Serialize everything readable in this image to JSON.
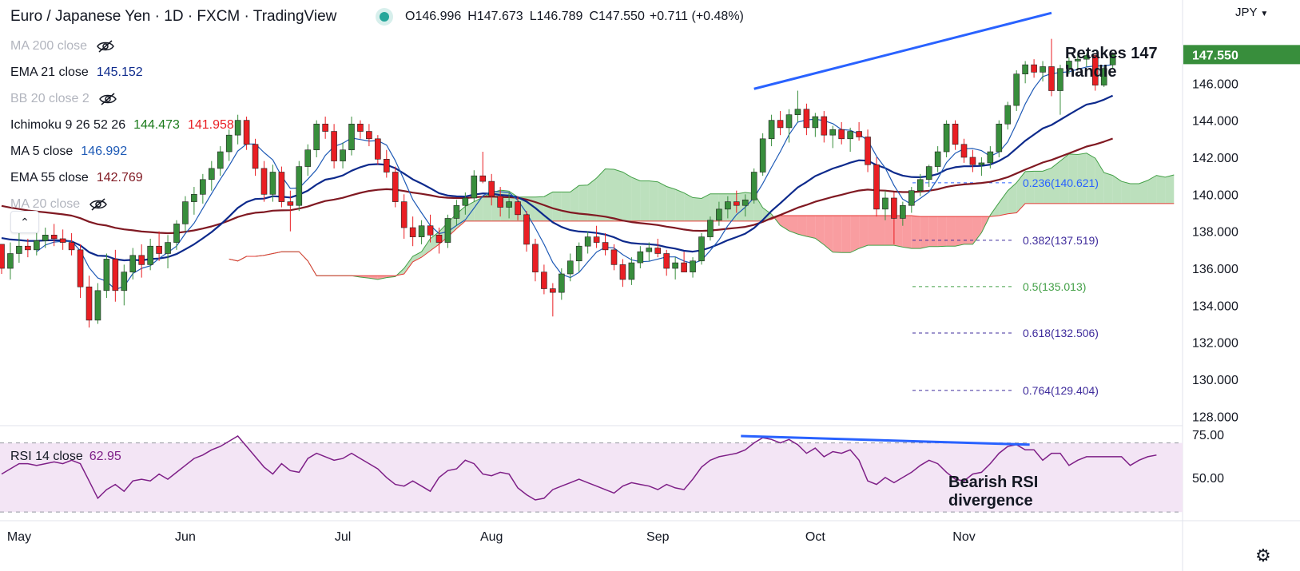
{
  "header": {
    "title": "Euro / Japanese Yen · 1D · FXCM · TradingView",
    "open_label": "O",
    "open": "146.996",
    "high_label": "H",
    "high": "147.673",
    "low_label": "L",
    "low": "146.789",
    "close_label": "C",
    "close": "147.550",
    "change": "+0.711 (+0.48%)",
    "currency": "JPY"
  },
  "legend": {
    "ma200": "MA 200 close",
    "ema21": "EMA 21 close",
    "ema21_val": "145.152",
    "bb20": "BB 20 close 2",
    "ichimoku": "Ichimoku 9 26 52 26",
    "ichimoku_val1": "144.473",
    "ichimoku_val2": "141.958",
    "ma5": "MA 5 close",
    "ma5_val": "146.992",
    "ema55": "EMA 55 close",
    "ema55_val": "142.769",
    "ma20": "MA 20 close"
  },
  "rsi": {
    "label": "RSI 14 close",
    "value": "62.95"
  },
  "colors": {
    "up": "#388e3c",
    "down": "#e91e23",
    "ma5": "#1e5ab6",
    "ema21": "#0d2a8c",
    "ema55": "#801922",
    "cloud_bull": "#a5d6a7",
    "cloud_bear": "#f77c80",
    "trendline": "#2962ff",
    "rsi": "#7e1f87",
    "rsi_band": "#f3e5f5",
    "price_badge": "#388e3c"
  },
  "chart_data": {
    "type": "candlestick",
    "ylim": [
      127.5,
      150.5
    ],
    "y_ticks": [
      "128.000",
      "130.000",
      "132.000",
      "134.000",
      "136.000",
      "138.000",
      "140.000",
      "142.000",
      "144.000",
      "146.000"
    ],
    "last_price": "147.550",
    "x_labels": [
      {
        "label": "May",
        "i": 0
      },
      {
        "label": "Jun",
        "i": 21
      },
      {
        "label": "Jul",
        "i": 39
      },
      {
        "label": "Aug",
        "i": 56
      },
      {
        "label": "Sep",
        "i": 75
      },
      {
        "label": "Oct",
        "i": 93
      },
      {
        "label": "Nov",
        "i": 110
      }
    ],
    "x_count": 133,
    "candles": [
      [
        137.3,
        137.3,
        135.7,
        136.0
      ],
      [
        136.0,
        137.4,
        135.4,
        136.8
      ],
      [
        136.8,
        137.9,
        136.3,
        137.2
      ],
      [
        137.2,
        137.6,
        136.6,
        137.0
      ],
      [
        137.0,
        138.0,
        136.7,
        137.5
      ],
      [
        137.5,
        138.2,
        137.1,
        137.8
      ],
      [
        137.8,
        138.4,
        137.2,
        137.6
      ],
      [
        137.6,
        138.1,
        137.0,
        137.4
      ],
      [
        137.4,
        137.9,
        136.7,
        137.0
      ],
      [
        137.0,
        137.3,
        134.4,
        135.0
      ],
      [
        135.0,
        135.6,
        132.8,
        133.2
      ],
      [
        133.2,
        135.2,
        133.0,
        134.8
      ],
      [
        134.8,
        136.8,
        134.4,
        136.5
      ],
      [
        136.5,
        137.0,
        134.2,
        134.8
      ],
      [
        134.8,
        136.2,
        134.0,
        135.8
      ],
      [
        135.8,
        137.1,
        135.4,
        136.7
      ],
      [
        136.7,
        137.3,
        135.5,
        136.2
      ],
      [
        136.2,
        137.6,
        135.9,
        137.2
      ],
      [
        137.2,
        138.0,
        136.4,
        136.8
      ],
      [
        136.8,
        137.8,
        136.0,
        137.4
      ],
      [
        137.4,
        138.6,
        137.0,
        138.4
      ],
      [
        138.4,
        139.9,
        138.0,
        139.6
      ],
      [
        139.6,
        140.4,
        138.9,
        140.0
      ],
      [
        140.0,
        141.1,
        139.5,
        140.8
      ],
      [
        140.8,
        141.8,
        140.2,
        141.4
      ],
      [
        141.4,
        142.6,
        141.0,
        142.3
      ],
      [
        142.3,
        143.5,
        141.8,
        143.2
      ],
      [
        143.2,
        144.3,
        142.7,
        144.0
      ],
      [
        144.0,
        144.2,
        142.4,
        142.7
      ],
      [
        142.7,
        143.0,
        141.0,
        141.4
      ],
      [
        141.4,
        141.8,
        139.6,
        140.0
      ],
      [
        140.0,
        141.6,
        139.6,
        141.2
      ],
      [
        141.2,
        141.5,
        139.3,
        139.6
      ],
      [
        139.6,
        140.2,
        138.0,
        139.4
      ],
      [
        139.4,
        141.8,
        139.1,
        141.5
      ],
      [
        141.5,
        142.7,
        141.0,
        142.4
      ],
      [
        142.4,
        144.0,
        142.0,
        143.8
      ],
      [
        143.8,
        144.2,
        143.0,
        143.4
      ],
      [
        143.4,
        143.8,
        141.4,
        141.8
      ],
      [
        141.8,
        142.8,
        141.4,
        142.4
      ],
      [
        142.4,
        144.2,
        142.1,
        143.8
      ],
      [
        143.8,
        144.0,
        143.0,
        143.4
      ],
      [
        143.4,
        143.8,
        142.6,
        143.0
      ],
      [
        143.0,
        143.2,
        141.6,
        141.9
      ],
      [
        141.9,
        142.4,
        140.9,
        141.2
      ],
      [
        141.2,
        141.5,
        139.3,
        139.6
      ],
      [
        139.6,
        140.0,
        137.6,
        138.2
      ],
      [
        138.2,
        138.8,
        137.2,
        137.7
      ],
      [
        137.7,
        138.6,
        137.3,
        138.3
      ],
      [
        138.3,
        138.9,
        137.4,
        137.8
      ],
      [
        137.8,
        138.2,
        136.8,
        137.4
      ],
      [
        137.4,
        138.9,
        137.1,
        138.7
      ],
      [
        138.7,
        139.7,
        138.3,
        139.4
      ],
      [
        139.4,
        140.1,
        138.9,
        139.8
      ],
      [
        139.8,
        141.3,
        139.6,
        141.0
      ],
      [
        141.0,
        142.3,
        140.6,
        140.7
      ],
      [
        140.7,
        141.1,
        139.4,
        139.9
      ],
      [
        139.9,
        140.4,
        138.8,
        139.3
      ],
      [
        139.3,
        140.1,
        138.7,
        139.6
      ],
      [
        139.6,
        139.9,
        138.6,
        138.9
      ],
      [
        138.9,
        139.1,
        136.9,
        137.3
      ],
      [
        137.3,
        137.6,
        135.3,
        135.8
      ],
      [
        135.8,
        136.2,
        134.6,
        134.9
      ],
      [
        134.9,
        135.2,
        133.4,
        134.7
      ],
      [
        134.7,
        136.0,
        134.3,
        135.7
      ],
      [
        135.7,
        136.8,
        135.3,
        136.4
      ],
      [
        136.4,
        137.4,
        135.8,
        137.2
      ],
      [
        137.2,
        138.0,
        136.8,
        137.7
      ],
      [
        137.7,
        138.3,
        137.1,
        137.4
      ],
      [
        137.4,
        137.9,
        136.7,
        137.0
      ],
      [
        137.0,
        137.3,
        135.9,
        136.2
      ],
      [
        136.2,
        136.5,
        135.0,
        135.4
      ],
      [
        135.4,
        136.6,
        135.1,
        136.3
      ],
      [
        136.3,
        137.2,
        136.0,
        136.9
      ],
      [
        136.9,
        137.4,
        136.4,
        137.1
      ],
      [
        137.1,
        137.6,
        136.6,
        136.8
      ],
      [
        136.8,
        137.0,
        135.6,
        136.0
      ],
      [
        136.0,
        136.6,
        135.4,
        136.3
      ],
      [
        136.3,
        136.9,
        135.8,
        135.8
      ],
      [
        135.8,
        136.6,
        135.5,
        136.4
      ],
      [
        136.4,
        137.9,
        136.2,
        137.7
      ],
      [
        137.7,
        138.8,
        137.5,
        138.6
      ],
      [
        138.6,
        139.6,
        138.3,
        139.2
      ],
      [
        139.2,
        139.9,
        138.7,
        139.6
      ],
      [
        139.6,
        140.2,
        139.0,
        139.4
      ],
      [
        139.4,
        140.0,
        138.8,
        139.7
      ],
      [
        139.7,
        141.4,
        139.5,
        141.2
      ],
      [
        141.2,
        143.3,
        141.0,
        143.0
      ],
      [
        143.0,
        144.3,
        142.6,
        144.0
      ],
      [
        144.0,
        144.5,
        143.2,
        143.6
      ],
      [
        143.6,
        144.6,
        142.8,
        144.3
      ],
      [
        144.3,
        145.6,
        143.9,
        144.6
      ],
      [
        144.6,
        144.9,
        143.2,
        143.6
      ],
      [
        143.6,
        144.4,
        143.1,
        144.2
      ],
      [
        144.2,
        144.5,
        142.8,
        143.2
      ],
      [
        143.2,
        143.7,
        142.5,
        143.5
      ],
      [
        143.5,
        143.9,
        142.7,
        143.0
      ],
      [
        143.0,
        143.6,
        142.3,
        143.4
      ],
      [
        143.4,
        143.9,
        142.9,
        143.1
      ],
      [
        143.1,
        143.5,
        141.2,
        141.6
      ],
      [
        141.6,
        142.0,
        138.8,
        139.2
      ],
      [
        139.2,
        140.2,
        138.6,
        139.8
      ],
      [
        139.8,
        140.1,
        137.3,
        138.7
      ],
      [
        138.7,
        139.6,
        138.3,
        139.4
      ],
      [
        139.4,
        140.4,
        139.0,
        140.2
      ],
      [
        140.2,
        141.1,
        139.9,
        140.8
      ],
      [
        140.8,
        141.6,
        140.4,
        141.5
      ],
      [
        141.5,
        142.6,
        141.2,
        142.3
      ],
      [
        142.3,
        144.0,
        142.0,
        143.8
      ],
      [
        143.8,
        144.0,
        142.4,
        142.7
      ],
      [
        142.7,
        143.0,
        141.7,
        142.0
      ],
      [
        142.0,
        142.4,
        141.2,
        141.6
      ],
      [
        141.6,
        142.0,
        141.0,
        141.7
      ],
      [
        141.7,
        142.6,
        141.4,
        142.3
      ],
      [
        142.3,
        144.0,
        142.0,
        143.8
      ],
      [
        143.8,
        145.0,
        143.5,
        144.8
      ],
      [
        144.8,
        146.7,
        144.5,
        146.5
      ],
      [
        146.5,
        147.2,
        146.0,
        147.0
      ],
      [
        147.0,
        147.3,
        146.3,
        146.6
      ],
      [
        146.6,
        147.2,
        146.1,
        146.9
      ],
      [
        146.9,
        148.4,
        145.3,
        145.6
      ],
      [
        145.6,
        147.0,
        144.3,
        146.8
      ],
      [
        146.8,
        147.4,
        146.5,
        147.2
      ],
      [
        147.2,
        147.6,
        146.8,
        147.3
      ],
      [
        147.3,
        147.6,
        146.9,
        147.5
      ],
      [
        147.5,
        147.6,
        145.6,
        145.9
      ],
      [
        145.9,
        146.9,
        145.8,
        146.8
      ],
      [
        146.996,
        147.673,
        146.789,
        147.55
      ]
    ],
    "annotations": [
      {
        "text_lines": [
          "Retakes 147",
          "handle"
        ]
      },
      {
        "text_lines": [
          "Bearish RSI",
          "divergence"
        ]
      }
    ],
    "fib_levels": [
      {
        "label": "0.236(140.621)",
        "price": 140.621,
        "color": "#2962ff"
      },
      {
        "label": "0.382(137.519)",
        "price": 137.519,
        "color": "#3f2c9c"
      },
      {
        "label": "0.5(135.013)",
        "price": 135.013,
        "color": "#43a047"
      },
      {
        "label": "0.618(132.506)",
        "price": 132.506,
        "color": "#3f2c9c"
      },
      {
        "label": "0.764(129.404)",
        "price": 129.404,
        "color": "#3f2c9c"
      }
    ],
    "trendline": {
      "from_price": 145.7,
      "to_price": 149.8
    },
    "rsi": {
      "ylim": [
        25,
        80
      ],
      "band": [
        30,
        70
      ],
      "ticks": [
        "75.00",
        "50.00"
      ],
      "values": [
        52,
        55,
        58,
        58,
        57,
        58,
        59,
        58,
        60,
        58,
        48,
        38,
        43,
        46,
        42,
        48,
        49,
        48,
        52,
        49,
        53,
        57,
        61,
        63,
        66,
        68,
        71,
        74,
        68,
        62,
        56,
        52,
        58,
        54,
        53,
        61,
        64,
        62,
        60,
        61,
        64,
        61,
        58,
        55,
        50,
        46,
        45,
        48,
        45,
        42,
        50,
        54,
        55,
        60,
        58,
        52,
        51,
        53,
        52,
        44,
        40,
        37,
        38,
        43,
        45,
        47,
        49,
        47,
        45,
        43,
        41,
        45,
        47,
        46,
        45,
        43,
        46,
        44,
        43,
        49,
        56,
        60,
        62,
        63,
        64,
        66,
        70,
        73,
        72,
        70,
        72,
        69,
        64,
        67,
        62,
        65,
        64,
        66,
        60,
        48,
        46,
        50,
        47,
        50,
        53,
        57,
        60,
        58,
        53,
        49,
        48,
        52,
        53,
        58,
        64,
        68,
        69,
        66,
        66,
        60,
        64,
        64,
        57,
        60,
        62,
        62,
        62,
        62,
        62,
        57,
        60,
        62,
        63
      ]
    }
  }
}
